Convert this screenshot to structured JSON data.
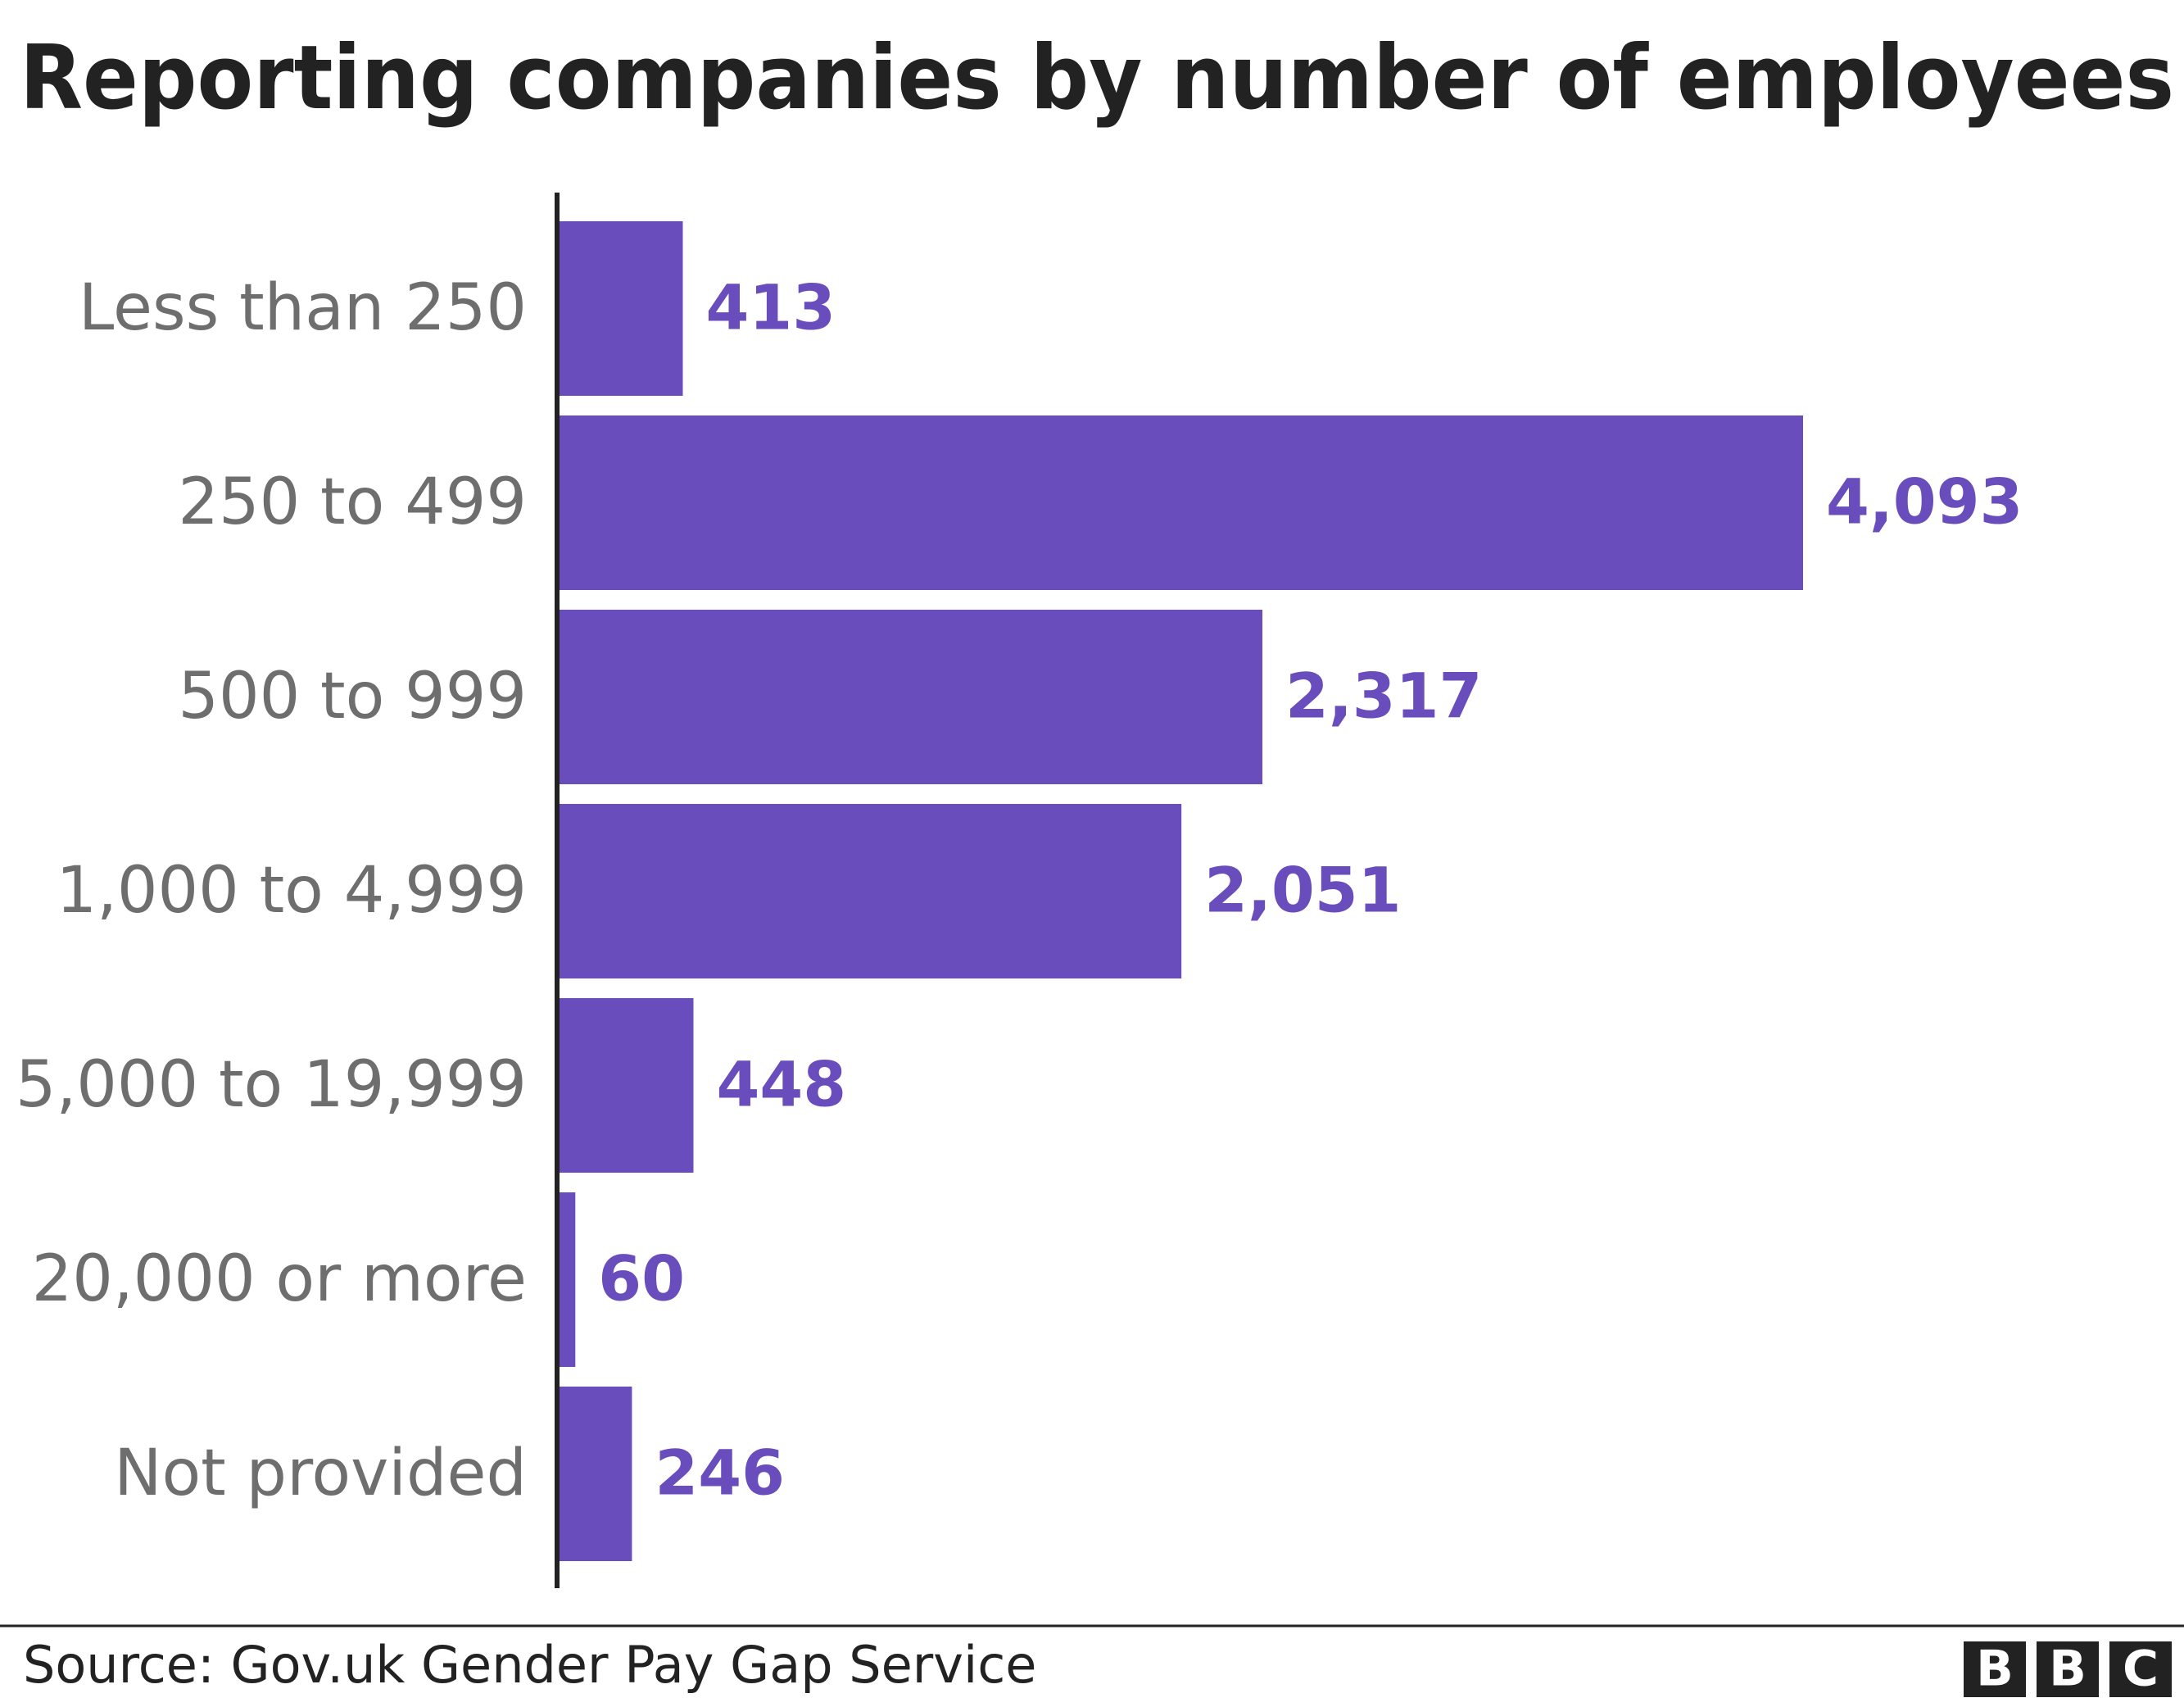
{
  "chart_data": {
    "type": "bar",
    "orientation": "horizontal",
    "title": "Reporting companies by number of employees",
    "categories": [
      "Less than 250",
      "250 to 499",
      "500 to 999",
      "1,000 to 4,999",
      "5,000 to 19,999",
      "20,000 or more",
      "Not provided"
    ],
    "values": [
      413,
      4093,
      2317,
      2051,
      448,
      60,
      246
    ],
    "value_labels": [
      "413",
      "4,093",
      "2,317",
      "2,051",
      "448",
      "60",
      "246"
    ],
    "color": "#6a4dbc",
    "source": "Source: Gov.uk Gender Pay Gap Service",
    "logo": "BBC"
  }
}
